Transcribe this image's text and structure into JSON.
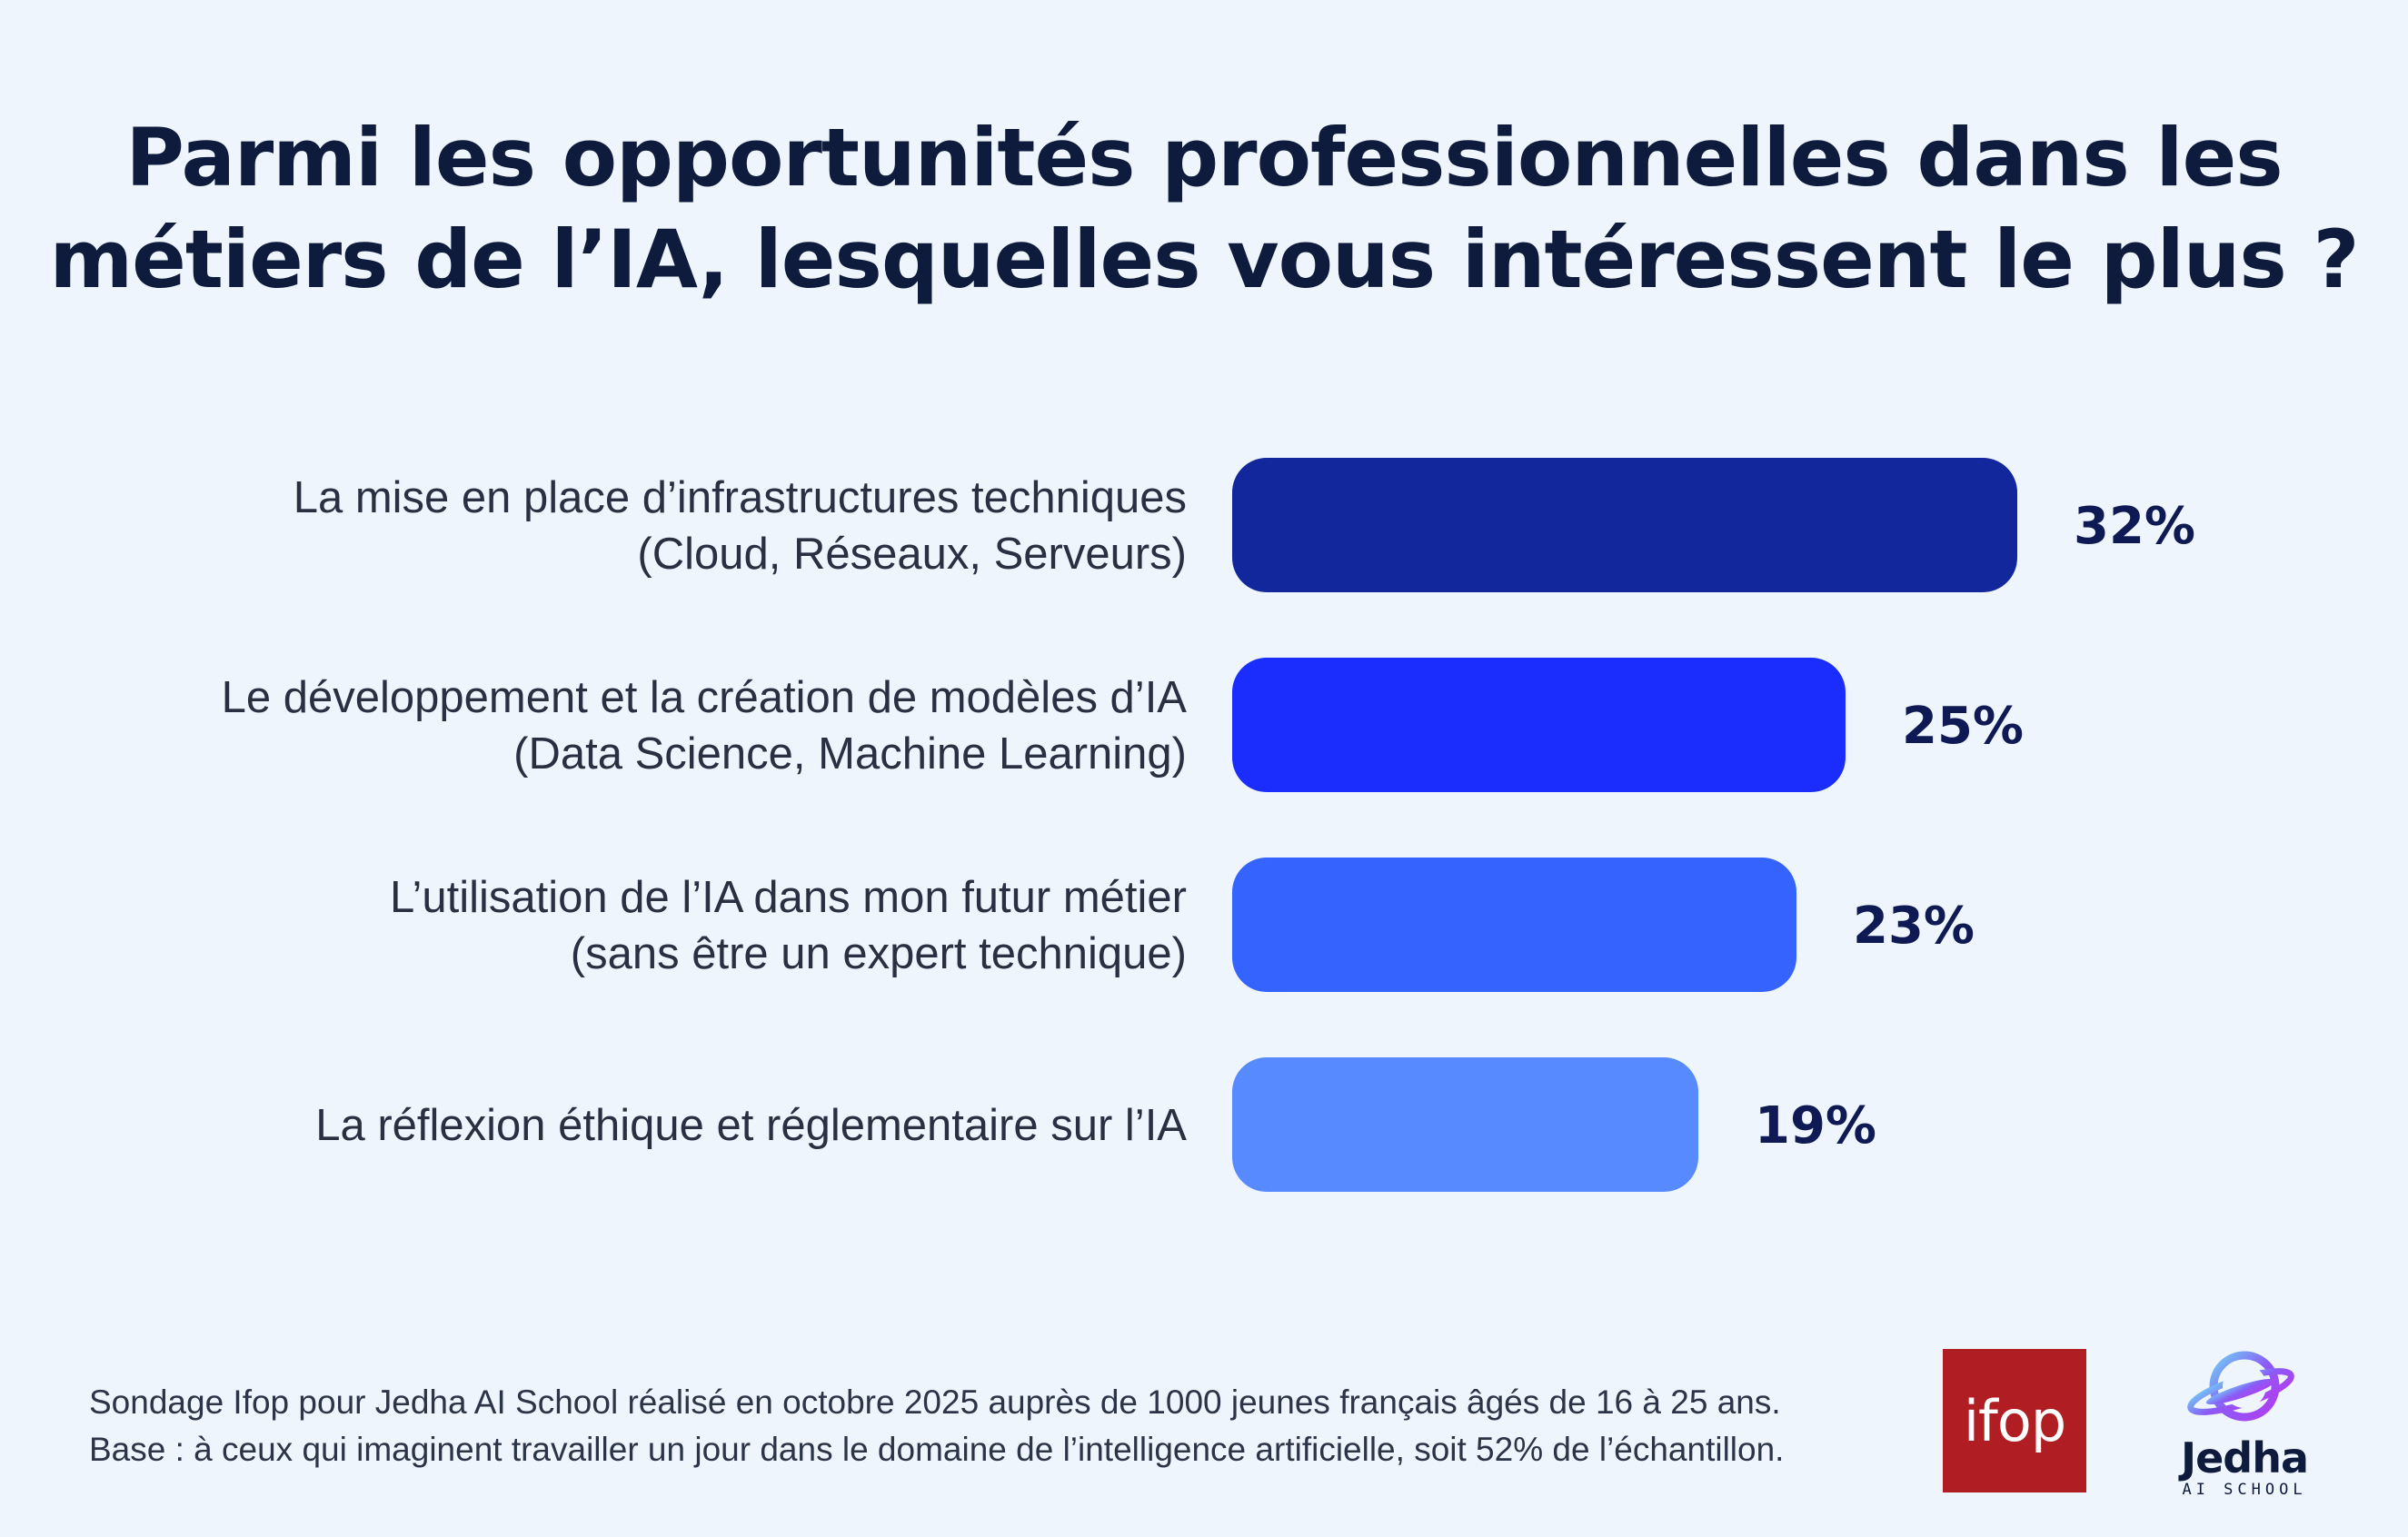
{
  "chart_data": {
    "type": "bar",
    "orientation": "horizontal",
    "title_lines": [
      "Parmi les opportunités professionnelles dans les",
      "métiers de l’IA, lesquelles vous intéressent le plus ?"
    ],
    "categories": [
      [
        "La mise en place d’infrastructures techniques",
        "(Cloud, Réseaux, Serveurs)"
      ],
      [
        "Le développement et la création de modèles d’IA",
        "(Data Science, Machine Learning)"
      ],
      [
        "L’utilisation de l’IA dans mon futur métier",
        "(sans être un expert technique)"
      ],
      [
        "La réflexion éthique et réglementaire sur l’IA"
      ]
    ],
    "values": [
      32,
      25,
      23,
      19
    ],
    "value_labels": [
      "32%",
      "25%",
      "23%",
      "19%"
    ],
    "bar_colors": [
      "#12279c",
      "#1a2dfc",
      "#3563fd",
      "#568afe"
    ],
    "unit": "%",
    "xlim": [
      0,
      32
    ]
  },
  "footer": {
    "line1": "Sondage Ifop pour Jedha AI School réalisé en octobre 2025 auprès de 1000 jeunes français âgés de 16 à 25 ans.",
    "line2": "Base : à ceux qui imaginent travailler un jour dans le domaine de l’intelligence artificielle, soit 52% de l’échantillon."
  },
  "logos": {
    "ifop": "ifop",
    "jedha_name": "Jedha",
    "jedha_sub": "AI SCHOOL"
  },
  "colors": {
    "background": "#eef5fd",
    "text": "#0e1b3d",
    "value_text": "#0f1a55"
  }
}
